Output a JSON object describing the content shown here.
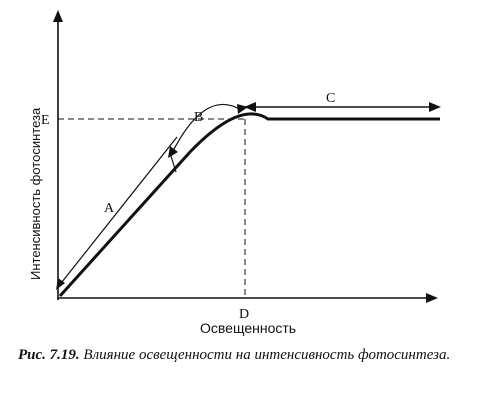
{
  "diagram": {
    "y_axis_label": "Интенсивность фотосинтеза",
    "x_axis_label": "Освещенность",
    "point_labels": {
      "A": "A",
      "B": "B",
      "C": "C",
      "D": "D",
      "E": "E"
    }
  },
  "caption": {
    "label": "Рис. 7.19.",
    "text": "Влияние освещенности на интенсивность фотосинтеза."
  },
  "colors": {
    "ink": "#111111",
    "background": "#ffffff"
  }
}
